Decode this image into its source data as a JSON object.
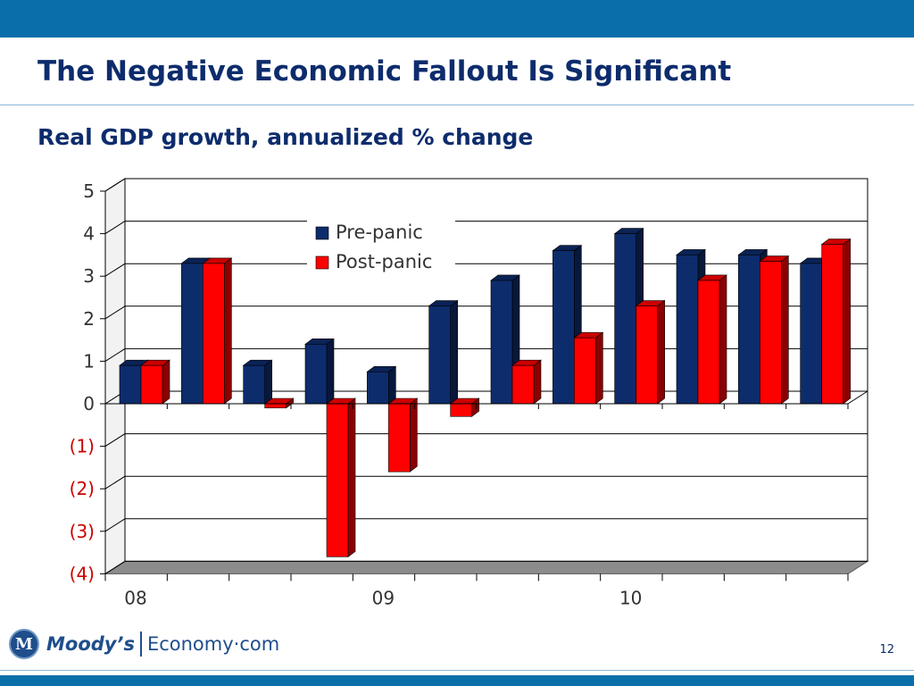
{
  "slide": {
    "title": "The Negative Economic Fallout Is Significant",
    "subtitle": "Real GDP growth, annualized % change",
    "page_number": "12",
    "logo": {
      "brand": "Moody’s",
      "site": "Economy·com",
      "seal_letter": "M"
    }
  },
  "colors": {
    "accent_bar": "#0a6eaa",
    "title_text": "#0d2c6c",
    "pre_panic": "#0d2c6c",
    "post_panic": "#ff0000",
    "negative_tick_label": "#cc0000"
  },
  "chart_data": {
    "type": "bar",
    "title": "Real GDP growth, annualized % change",
    "ylim": [
      -4,
      5
    ],
    "yticks": [
      5,
      4,
      3,
      2,
      1,
      0,
      -1,
      -2,
      -3,
      -4
    ],
    "ytick_labels": [
      "5",
      "4",
      "3",
      "2",
      "1",
      "0",
      "(1)",
      "(2)",
      "(3)",
      "(4)"
    ],
    "x_group_labels": [
      {
        "label": "08",
        "at_category": 0
      },
      {
        "label": "09",
        "at_category": 4
      },
      {
        "label": "10",
        "at_category": 8
      }
    ],
    "categories": [
      "",
      "",
      "",
      "",
      "",
      "",
      "",
      "",
      "",
      "",
      "",
      ""
    ],
    "series": [
      {
        "name": "Pre-panic",
        "color": "#0d2c6c",
        "values": [
          0.9,
          3.3,
          0.9,
          1.4,
          0.75,
          2.3,
          2.9,
          3.6,
          4.0,
          3.5,
          3.5,
          3.3
        ]
      },
      {
        "name": "Post-panic",
        "color": "#ff0000",
        "values": [
          0.9,
          3.3,
          -0.1,
          -3.6,
          -1.6,
          -0.3,
          0.9,
          1.55,
          2.3,
          2.9,
          3.35,
          3.75
        ]
      }
    ],
    "legend": "top-center",
    "grid": true
  }
}
